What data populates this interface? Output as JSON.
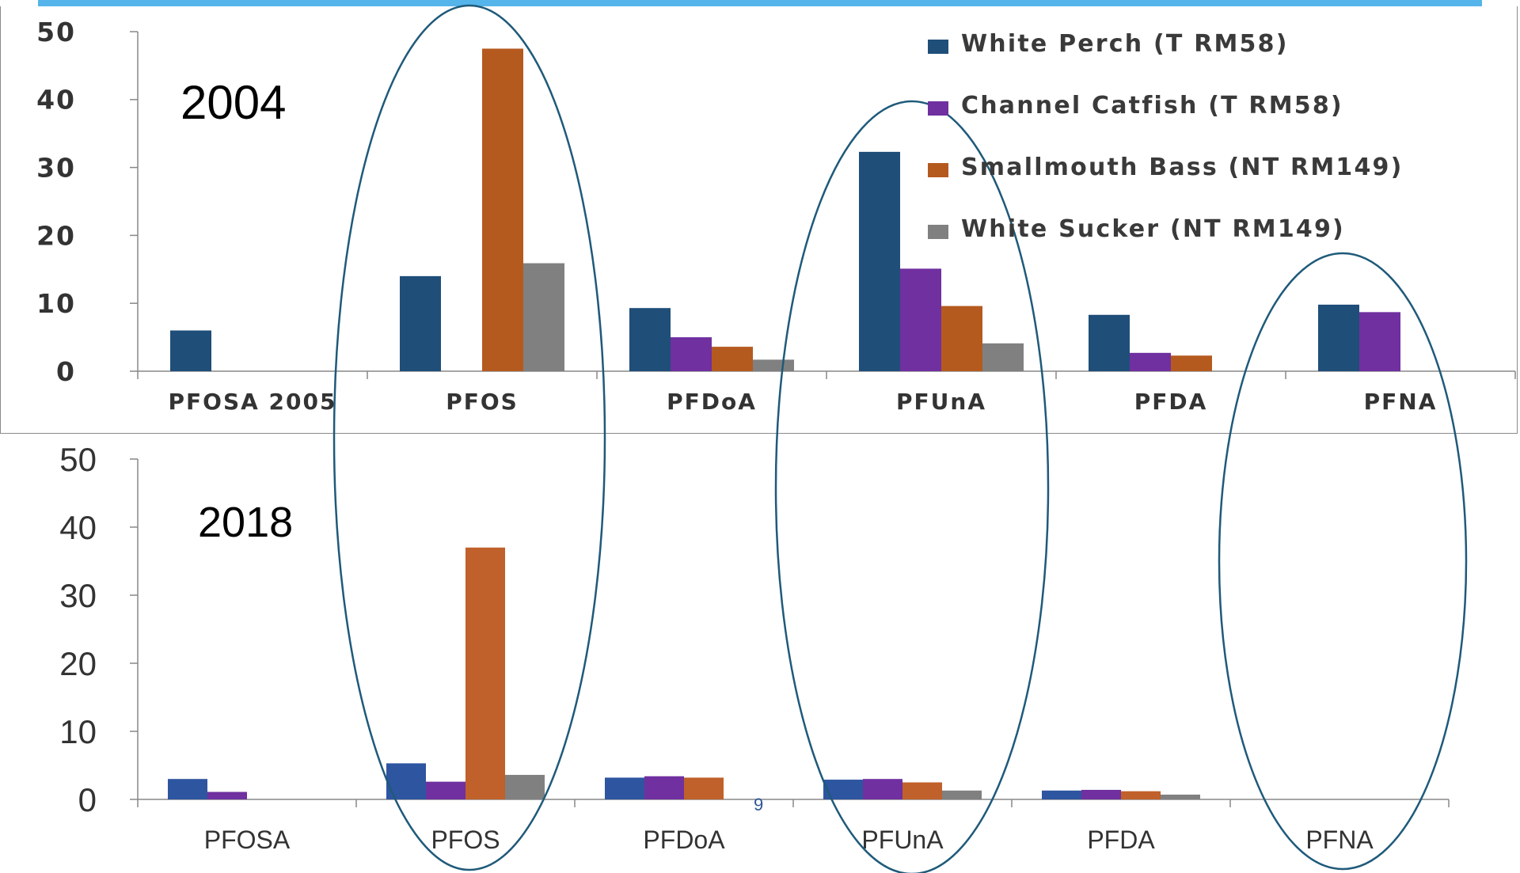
{
  "page_number": "9",
  "legend_items": [
    {
      "label": "White Perch (T RM58)",
      "color": "#1f4e79"
    },
    {
      "label": "Channel Catfish (T RM58)",
      "color": "#7030a0"
    },
    {
      "label": "Smallmouth Bass (NT RM149)",
      "color": "#b55a1f"
    },
    {
      "label": "White Sucker (NT RM149)",
      "color": "#808080"
    }
  ],
  "chart_data": [
    {
      "type": "bar",
      "title": "2004",
      "categories": [
        "PFOSA 2005",
        "PFOS",
        "PFDoA",
        "PFUnA",
        "PFDA",
        "PFNA"
      ],
      "ylim": [
        0,
        50
      ],
      "yticks": [
        "0",
        "10",
        "20",
        "30",
        "40",
        "50"
      ],
      "grid": false,
      "legend_position": "top-right",
      "series": [
        {
          "name": "White Perch (T RM58)",
          "color": "#1f4e79",
          "values": [
            6,
            14,
            9.3,
            32.3,
            8.3,
            9.8
          ]
        },
        {
          "name": "Channel Catfish (T RM58)",
          "color": "#7030a0",
          "values": [
            null,
            null,
            5,
            15.1,
            2.7,
            8.7
          ]
        },
        {
          "name": "Smallmouth Bass (NT RM149)",
          "color": "#b55a1f",
          "values": [
            null,
            47.5,
            3.6,
            9.6,
            2.3,
            null
          ]
        },
        {
          "name": "White Sucker (NT RM149)",
          "color": "#808080",
          "values": [
            null,
            15.9,
            1.7,
            4.1,
            null,
            null
          ]
        }
      ]
    },
    {
      "type": "bar",
      "title": "2018",
      "categories": [
        "PFOSA",
        "PFOS",
        "PFDoA",
        "PFUnA",
        "PFDA",
        "PFNA"
      ],
      "ylim": [
        0,
        50
      ],
      "yticks": [
        "0",
        "10",
        "20",
        "30",
        "40",
        "50"
      ],
      "grid": false,
      "series": [
        {
          "name": "White Perch (T RM58)",
          "color": "#2e55a0",
          "values": [
            3,
            5.3,
            3.2,
            2.9,
            1.3,
            null
          ]
        },
        {
          "name": "Channel Catfish (T RM58)",
          "color": "#7030a0",
          "values": [
            1.1,
            2.6,
            3.4,
            3,
            1.4,
            null
          ]
        },
        {
          "name": "Smallmouth Bass (NT RM149)",
          "color": "#c0602a",
          "values": [
            null,
            37,
            3.2,
            2.5,
            1.2,
            null
          ]
        },
        {
          "name": "White Sucker (NT RM149)",
          "color": "#808080",
          "values": [
            null,
            3.6,
            null,
            1.3,
            0.7,
            null
          ]
        }
      ]
    }
  ]
}
